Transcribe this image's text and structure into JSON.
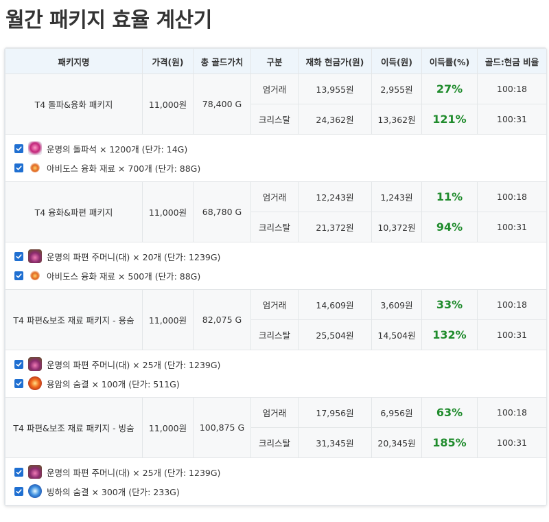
{
  "title": "월간 패키지 효율 계산기",
  "headers": [
    "패키지명",
    "가격(원)",
    "총 골드가치",
    "구분",
    "재화 현금가(원)",
    "이득(원)",
    "이득률(%)",
    "골드:현금 비율"
  ],
  "packages": [
    {
      "name": "T4 돌파&융화 패키지",
      "price": "11,000원",
      "gold_value": "78,400 G",
      "rows": [
        {
          "type": "엄거래",
          "cash": "13,955원",
          "profit": "2,955원",
          "rate": "27%",
          "ratio": "100:18"
        },
        {
          "type": "크리스탈",
          "cash": "24,362원",
          "profit": "13,362원",
          "rate": "121%",
          "ratio": "100:31"
        }
      ],
      "items": [
        {
          "icon": "destiny-breakthrough-stone-icon",
          "icon_class": "ico-stone",
          "text": "운명의 돌파석 × 1200개 (단가: 14G)"
        },
        {
          "icon": "abydos-fusion-material-icon",
          "icon_class": "ico-fusion",
          "text": "아비도스 융화 재료 × 700개 (단가: 88G)"
        }
      ]
    },
    {
      "name": "T4 융화&파편 패키지",
      "price": "11,000원",
      "gold_value": "68,780 G",
      "rows": [
        {
          "type": "엄거래",
          "cash": "12,243원",
          "profit": "1,243원",
          "rate": "11%",
          "ratio": "100:18"
        },
        {
          "type": "크리스탈",
          "cash": "21,372원",
          "profit": "10,372원",
          "rate": "94%",
          "ratio": "100:31"
        }
      ],
      "items": [
        {
          "icon": "destiny-shard-pouch-icon",
          "icon_class": "ico-pouch",
          "text": "운명의 파편 주머니(대) × 20개 (단가: 1239G)"
        },
        {
          "icon": "abydos-fusion-material-icon",
          "icon_class": "ico-fusion",
          "text": "아비도스 융화 재료 × 500개 (단가: 88G)"
        }
      ]
    },
    {
      "name": "T4 파편&보조 재료 패키지 - 용숨",
      "price": "11,000원",
      "gold_value": "82,075 G",
      "rows": [
        {
          "type": "엄거래",
          "cash": "14,609원",
          "profit": "3,609원",
          "rate": "33%",
          "ratio": "100:18"
        },
        {
          "type": "크리스탈",
          "cash": "25,504원",
          "profit": "14,504원",
          "rate": "132%",
          "ratio": "100:31"
        }
      ],
      "items": [
        {
          "icon": "destiny-shard-pouch-icon",
          "icon_class": "ico-pouch",
          "text": "운명의 파편 주머니(대) × 25개 (단가: 1239G)"
        },
        {
          "icon": "lava-breath-icon",
          "icon_class": "ico-lava",
          "text": "용암의 숨결 × 100개 (단가: 511G)"
        }
      ]
    },
    {
      "name": "T4 파편&보조 재료 패키지 - 빙숨",
      "price": "11,000원",
      "gold_value": "100,875 G",
      "rows": [
        {
          "type": "엄거래",
          "cash": "17,956원",
          "profit": "6,956원",
          "rate": "63%",
          "ratio": "100:18"
        },
        {
          "type": "크리스탈",
          "cash": "31,345원",
          "profit": "20,345원",
          "rate": "185%",
          "ratio": "100:31"
        }
      ],
      "items": [
        {
          "icon": "destiny-shard-pouch-icon",
          "icon_class": "ico-pouch",
          "text": "운명의 파편 주머니(대) × 25개 (단가: 1239G)"
        },
        {
          "icon": "glacier-breath-icon",
          "icon_class": "ico-ice",
          "text": "빙하의 숨결 × 300개 (단가: 233G)"
        }
      ]
    }
  ],
  "colors": {
    "header_bg": "#eef5fb",
    "rate_green": "#1f8b2c",
    "checkbox_blue": "#1f6fd1",
    "row_bg": "#f7f8f9"
  }
}
